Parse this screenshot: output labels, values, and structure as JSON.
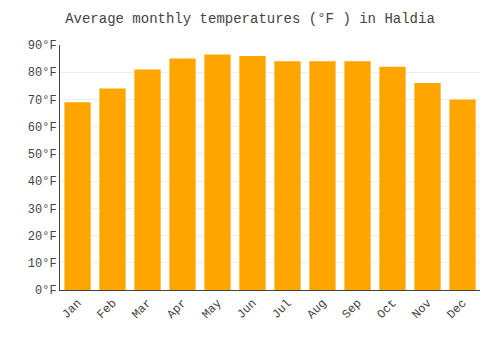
{
  "chart_data": {
    "type": "bar",
    "title": "Average monthly temperatures (°F ) in Haldia",
    "categories": [
      "Jan",
      "Feb",
      "Mar",
      "Apr",
      "May",
      "Jun",
      "Jul",
      "Aug",
      "Sep",
      "Oct",
      "Nov",
      "Dec"
    ],
    "values": [
      69,
      74,
      81,
      85,
      86.5,
      86,
      84,
      84,
      84,
      82,
      76,
      70
    ],
    "color": "#FFA500",
    "ylim": [
      0,
      90
    ],
    "yticks": [
      {
        "value": 0,
        "label": "0°F"
      },
      {
        "value": 10,
        "label": "10°F"
      },
      {
        "value": 20,
        "label": "20°F"
      },
      {
        "value": 30,
        "label": "30°F"
      },
      {
        "value": 40,
        "label": "40°F"
      },
      {
        "value": 50,
        "label": "50°F"
      },
      {
        "value": 60,
        "label": "60°F"
      },
      {
        "value": 70,
        "label": "70°F"
      },
      {
        "value": 80,
        "label": "80°F"
      },
      {
        "value": 90,
        "label": "90°F"
      }
    ],
    "grid": true
  }
}
